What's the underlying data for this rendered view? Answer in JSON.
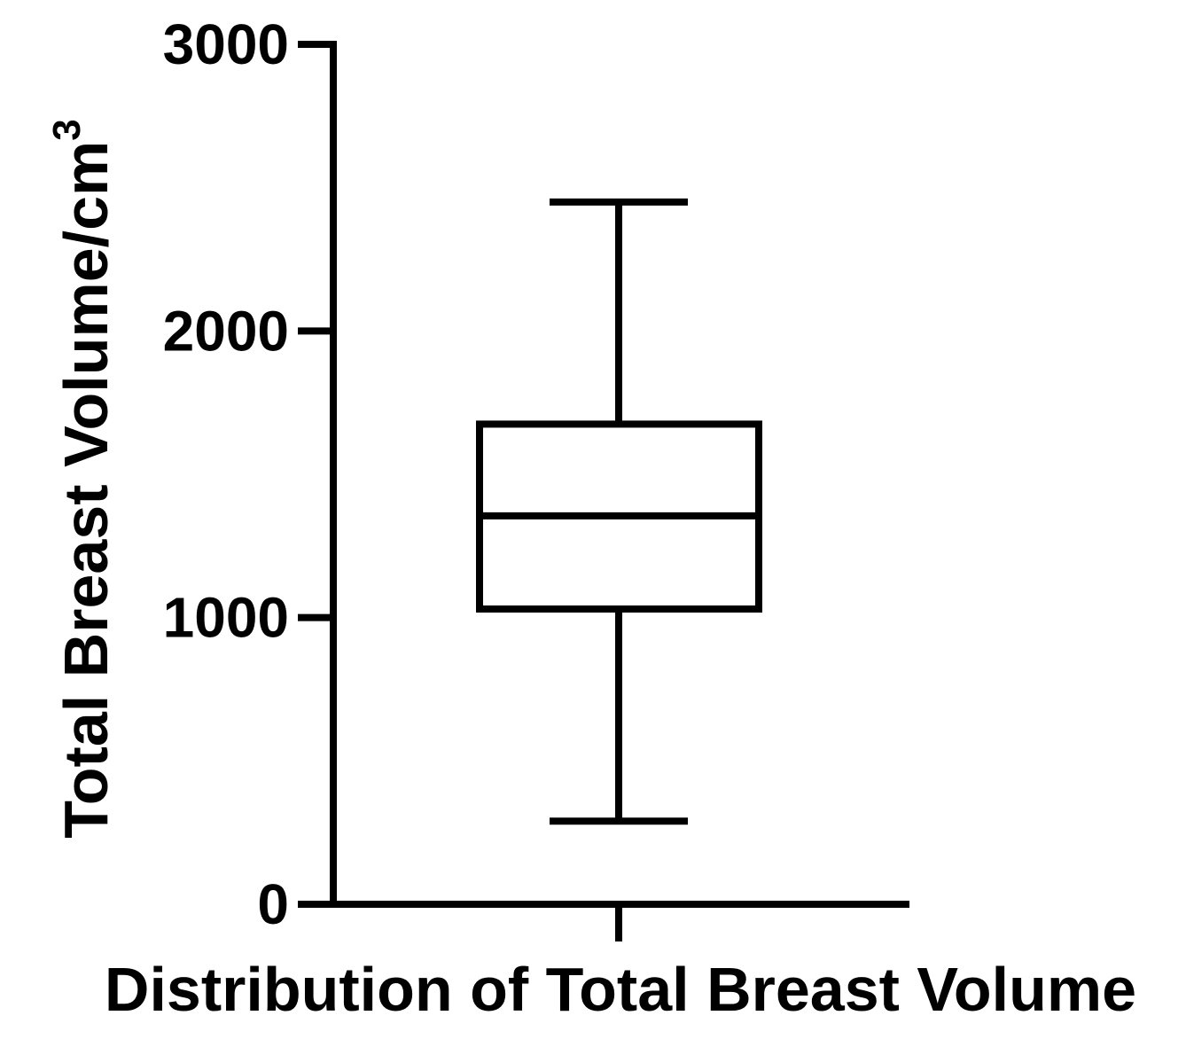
{
  "chart_data": {
    "type": "box",
    "xlabel": "Distribution of Total Breast Volume",
    "ylabel": "Total Breast Volume/cm",
    "ylabel_superscript": "3",
    "ylim": [
      0,
      3000
    ],
    "y_ticks": [
      0,
      1000,
      2000,
      3000
    ],
    "y_tick_labels": [
      "0",
      "1000",
      "2000",
      "3000"
    ],
    "grid": false,
    "legend": "none",
    "categories": [
      ""
    ],
    "box": {
      "min": 290,
      "q1": 1030,
      "median": 1355,
      "q3": 1675,
      "max": 2450
    },
    "colors": {
      "stroke": "#000000",
      "background": "#ffffff"
    }
  }
}
